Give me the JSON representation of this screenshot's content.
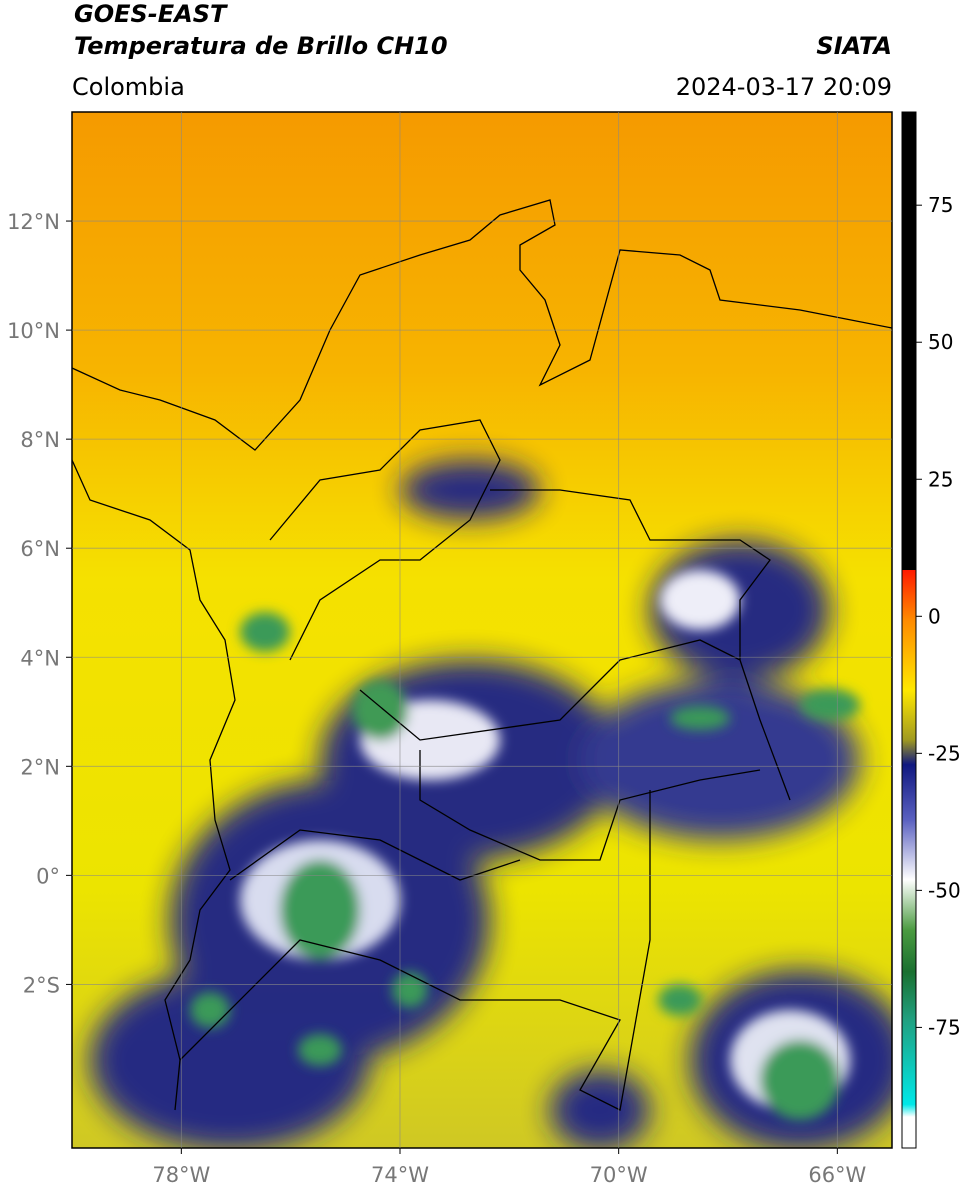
{
  "header": {
    "title": "GOES-EAST",
    "subtitle": "Temperatura de Brillo CH10",
    "source": "SIATA",
    "region": "Colombia",
    "datetime": "2024-03-17 20:09"
  },
  "map": {
    "lonlim": [
      -80,
      -65
    ],
    "latlim": [
      -5,
      14
    ],
    "xticks": [
      {
        "value": -78,
        "label": "78°W"
      },
      {
        "value": -74,
        "label": "74°W"
      },
      {
        "value": -70,
        "label": "70°W"
      },
      {
        "value": -66,
        "label": "66°W"
      }
    ],
    "yticks": [
      {
        "value": 12,
        "label": "12°N"
      },
      {
        "value": 10,
        "label": "10°N"
      },
      {
        "value": 8,
        "label": "8°N"
      },
      {
        "value": 6,
        "label": "6°N"
      },
      {
        "value": 4,
        "label": "4°N"
      },
      {
        "value": 2,
        "label": "2°N"
      },
      {
        "value": 0,
        "label": "0°"
      },
      {
        "value": -2,
        "label": "2°S"
      }
    ],
    "grid": true
  },
  "colorbar": {
    "lim": [
      -97,
      92
    ],
    "ticks": [
      75,
      50,
      25,
      0,
      -25,
      -50,
      -75
    ]
  }
}
